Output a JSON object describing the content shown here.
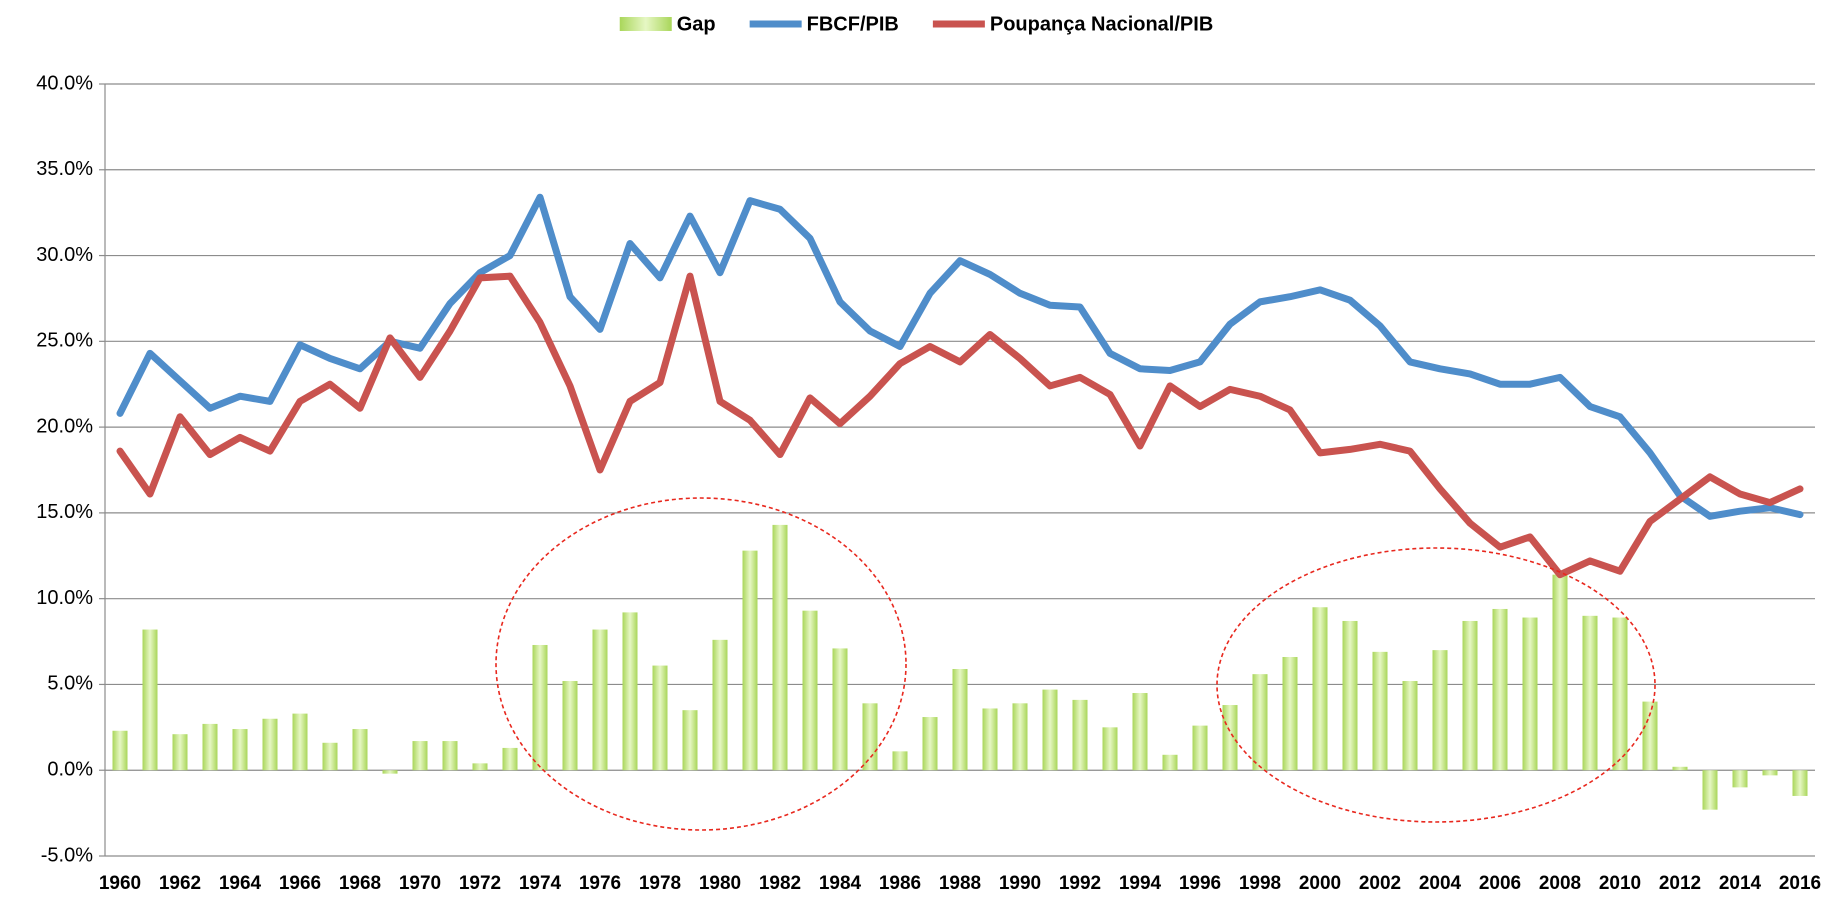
{
  "chart_data": {
    "type": "combo",
    "categories": [
      "1960",
      null,
      "1962",
      null,
      "1964",
      null,
      "1966",
      null,
      "1968",
      null,
      "1970",
      null,
      "1972",
      null,
      "1974",
      null,
      "1976",
      null,
      "1978",
      null,
      "1980",
      null,
      "1982",
      null,
      "1984",
      null,
      "1986",
      null,
      "1988",
      null,
      "1990",
      null,
      "1992",
      null,
      "1994",
      null,
      "1996",
      null,
      "1998",
      null,
      "2000",
      null,
      "2002",
      null,
      "2004",
      null,
      "2006",
      null,
      "2008",
      null,
      "2010",
      null,
      "2012",
      null,
      "2014",
      null,
      "2016"
    ],
    "series": [
      {
        "name": "Gap",
        "type": "bar",
        "color": "#b5dd6e",
        "values": [
          2.3,
          8.2,
          2.1,
          2.7,
          2.4,
          3.0,
          3.3,
          1.6,
          2.4,
          -0.2,
          1.7,
          1.7,
          0.4,
          1.3,
          7.3,
          5.2,
          8.2,
          9.2,
          6.1,
          3.5,
          7.6,
          12.8,
          14.3,
          9.3,
          7.1,
          3.9,
          1.1,
          3.1,
          5.9,
          3.6,
          3.9,
          4.7,
          4.1,
          2.5,
          4.5,
          0.9,
          2.6,
          3.8,
          5.6,
          6.6,
          9.5,
          8.7,
          6.9,
          5.2,
          7.0,
          8.7,
          9.4,
          8.9,
          11.4,
          9.0,
          8.9,
          4.0,
          0.2,
          -2.3,
          -1.0,
          -0.3,
          -1.5
        ]
      },
      {
        "name": "FBCF/PIB",
        "type": "line",
        "color": "#4f8dca",
        "values": [
          20.8,
          24.3,
          22.7,
          21.1,
          21.8,
          21.5,
          24.8,
          24.0,
          23.4,
          25.0,
          24.6,
          27.2,
          29.0,
          30.0,
          33.4,
          27.6,
          25.7,
          30.7,
          28.7,
          32.3,
          29.0,
          33.2,
          32.7,
          31.0,
          27.3,
          25.6,
          24.7,
          27.8,
          29.7,
          28.9,
          27.8,
          27.1,
          27.0,
          24.3,
          23.4,
          23.3,
          23.8,
          26.0,
          27.3,
          27.6,
          28.0,
          27.4,
          25.9,
          23.8,
          23.4,
          23.1,
          22.5,
          22.5,
          22.9,
          21.2,
          20.6,
          18.5,
          16.0,
          14.8,
          15.1,
          15.3,
          14.9
        ]
      },
      {
        "name": "Poupança Nacional/PIB",
        "type": "line",
        "color": "#c9534f",
        "values": [
          18.6,
          16.1,
          20.6,
          18.4,
          19.4,
          18.6,
          21.5,
          22.5,
          21.1,
          25.2,
          22.9,
          25.6,
          28.7,
          28.8,
          26.1,
          22.4,
          17.5,
          21.5,
          22.6,
          28.8,
          21.5,
          20.4,
          18.4,
          21.7,
          20.2,
          21.8,
          23.7,
          24.7,
          23.8,
          25.4,
          24.0,
          22.4,
          22.9,
          21.9,
          18.9,
          22.4,
          21.2,
          22.2,
          21.8,
          21.0,
          18.5,
          18.7,
          19.0,
          18.6,
          16.4,
          14.4,
          13.0,
          13.6,
          11.4,
          12.2,
          11.6,
          14.5,
          15.8,
          17.1,
          16.1,
          15.6,
          16.4
        ]
      }
    ],
    "ylim": [
      -5,
      40
    ],
    "yticks": [
      {
        "value": -5,
        "label": "-5.0%"
      },
      {
        "value": 0,
        "label": "0.0%"
      },
      {
        "value": 5,
        "label": "5.0%"
      },
      {
        "value": 10,
        "label": "10.0%"
      },
      {
        "value": 15,
        "label": "15.0%"
      },
      {
        "value": 20,
        "label": "20.0%"
      },
      {
        "value": 25,
        "label": "25.0%"
      },
      {
        "value": 30,
        "label": "30.0%"
      },
      {
        "value": 35,
        "label": "35.0%"
      },
      {
        "value": 40,
        "label": "40.0%"
      }
    ],
    "grid": true,
    "legend": "top"
  }
}
